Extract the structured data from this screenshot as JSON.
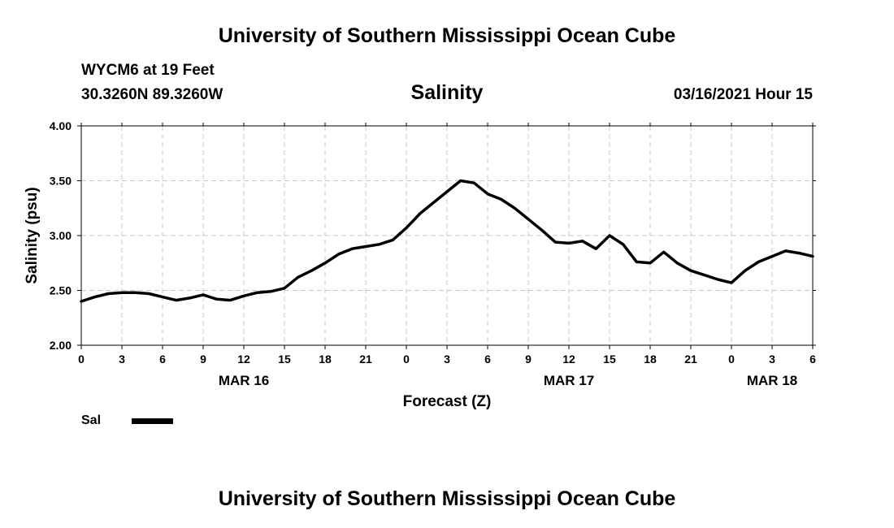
{
  "header": {
    "top_title": "University of Southern Mississippi Ocean Cube",
    "station": "WYCM6 at 19 Feet",
    "coords": "30.3260N 89.3260W",
    "chart_title": "Salinity",
    "datetime": "03/16/2021 Hour 15",
    "bottom_title": "University of Southern Mississippi Ocean Cube"
  },
  "legend": {
    "label": "Sal"
  },
  "chart_data": {
    "type": "line",
    "title": "Salinity",
    "xlabel": "Forecast (Z)",
    "ylabel": "Salinity (psu)",
    "xlim": [
      0,
      54
    ],
    "ylim": [
      2.0,
      4.0
    ],
    "y_ticks": [
      "2.00",
      "2.50",
      "3.00",
      "3.50",
      "4.00"
    ],
    "x_ticks": [
      {
        "h": 0,
        "label": "0"
      },
      {
        "h": 3,
        "label": "3"
      },
      {
        "h": 6,
        "label": "6"
      },
      {
        "h": 9,
        "label": "9"
      },
      {
        "h": 12,
        "label": "12"
      },
      {
        "h": 15,
        "label": "15"
      },
      {
        "h": 18,
        "label": "18"
      },
      {
        "h": 21,
        "label": "21"
      },
      {
        "h": 24,
        "label": "0"
      },
      {
        "h": 27,
        "label": "3"
      },
      {
        "h": 30,
        "label": "6"
      },
      {
        "h": 33,
        "label": "9"
      },
      {
        "h": 36,
        "label": "12"
      },
      {
        "h": 39,
        "label": "15"
      },
      {
        "h": 42,
        "label": "18"
      },
      {
        "h": 45,
        "label": "21"
      },
      {
        "h": 48,
        "label": "0"
      },
      {
        "h": 51,
        "label": "3"
      },
      {
        "h": 54,
        "label": "6"
      }
    ],
    "date_labels": [
      {
        "h": 12,
        "label": "MAR 16"
      },
      {
        "h": 36,
        "label": "MAR 17"
      },
      {
        "h": 51,
        "label": "MAR 18"
      }
    ],
    "grid": true,
    "series": [
      {
        "name": "Sal",
        "color": "#000000",
        "x": [
          0,
          1,
          2,
          3,
          4,
          5,
          6,
          7,
          8,
          9,
          10,
          11,
          12,
          13,
          14,
          15,
          16,
          17,
          18,
          19,
          20,
          21,
          22,
          23,
          24,
          25,
          26,
          27,
          28,
          29,
          30,
          31,
          32,
          33,
          34,
          35,
          36,
          37,
          38,
          39,
          40,
          41,
          42,
          43,
          44,
          45,
          46,
          47,
          48,
          49,
          50,
          51,
          52,
          53,
          54
        ],
        "values": [
          2.4,
          2.44,
          2.47,
          2.48,
          2.48,
          2.47,
          2.44,
          2.41,
          2.43,
          2.46,
          2.42,
          2.41,
          2.45,
          2.48,
          2.49,
          2.52,
          2.62,
          2.68,
          2.75,
          2.83,
          2.88,
          2.9,
          2.92,
          2.96,
          3.07,
          3.2,
          3.3,
          3.4,
          3.5,
          3.48,
          3.38,
          3.33,
          3.25,
          3.15,
          3.05,
          2.94,
          2.93,
          2.95,
          2.88,
          3.0,
          2.92,
          2.76,
          2.75,
          2.85,
          2.75,
          2.68,
          2.64,
          2.6,
          2.57,
          2.68,
          2.76,
          2.81,
          2.86,
          2.84,
          2.81
        ]
      }
    ]
  }
}
